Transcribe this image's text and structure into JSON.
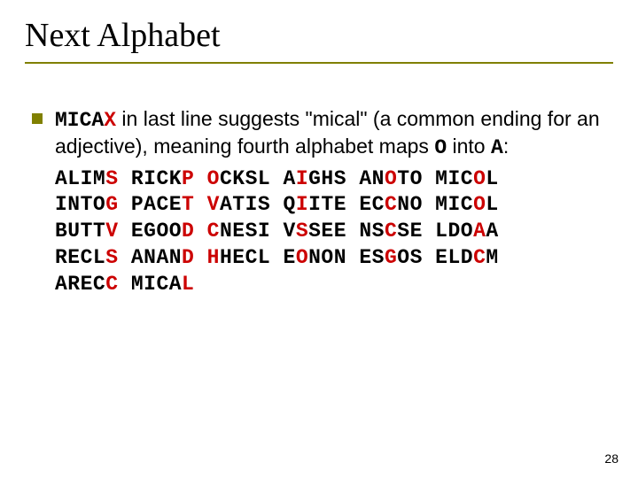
{
  "title": "Next Alphabet",
  "body": {
    "mono1": "MICA",
    "mono1_red": "X",
    "text1": " in last line suggests \"mical\" (a common ending for an adjective), meaning fourth alphabet maps ",
    "mono2": "O",
    "text2": " into ",
    "mono3": "A",
    "text3": ":"
  },
  "cipher": {
    "lines": [
      [
        {
          "t": "ALIM",
          "r": false
        },
        {
          "t": "S",
          "r": true
        },
        {
          "t": " RICK",
          "r": false
        },
        {
          "t": "P",
          "r": true
        },
        {
          "t": " ",
          "r": false
        },
        {
          "t": "O",
          "r": true
        },
        {
          "t": "CKSL A",
          "r": false
        },
        {
          "t": "I",
          "r": true
        },
        {
          "t": "GHS AN",
          "r": false
        },
        {
          "t": "O",
          "r": true
        },
        {
          "t": "TO MIC",
          "r": false
        },
        {
          "t": "O",
          "r": true
        },
        {
          "t": "L",
          "r": false
        }
      ],
      [
        {
          "t": "INTO",
          "r": false
        },
        {
          "t": "G",
          "r": true
        },
        {
          "t": " PACE",
          "r": false
        },
        {
          "t": "T",
          "r": true
        },
        {
          "t": " ",
          "r": false
        },
        {
          "t": "V",
          "r": true
        },
        {
          "t": "ATIS Q",
          "r": false
        },
        {
          "t": "I",
          "r": true
        },
        {
          "t": "ITE EC",
          "r": false
        },
        {
          "t": "C",
          "r": true
        },
        {
          "t": "NO MIC",
          "r": false
        },
        {
          "t": "O",
          "r": true
        },
        {
          "t": "L",
          "r": false
        }
      ],
      [
        {
          "t": "BUTT",
          "r": false
        },
        {
          "t": "V",
          "r": true
        },
        {
          "t": " EGOO",
          "r": false
        },
        {
          "t": "D",
          "r": true
        },
        {
          "t": " ",
          "r": false
        },
        {
          "t": "C",
          "r": true
        },
        {
          "t": "NESI V",
          "r": false
        },
        {
          "t": "S",
          "r": true
        },
        {
          "t": "SEE NS",
          "r": false
        },
        {
          "t": "C",
          "r": true
        },
        {
          "t": "SE LDO",
          "r": false
        },
        {
          "t": "A",
          "r": true
        },
        {
          "t": "A",
          "r": false
        }
      ],
      [
        {
          "t": "RECL",
          "r": false
        },
        {
          "t": "S",
          "r": true
        },
        {
          "t": " ANAN",
          "r": false
        },
        {
          "t": "D",
          "r": true
        },
        {
          "t": " ",
          "r": false
        },
        {
          "t": "H",
          "r": true
        },
        {
          "t": "HECL E",
          "r": false
        },
        {
          "t": "O",
          "r": true
        },
        {
          "t": "NON ES",
          "r": false
        },
        {
          "t": "G",
          "r": true
        },
        {
          "t": "OS ELD",
          "r": false
        },
        {
          "t": "C",
          "r": true
        },
        {
          "t": "M",
          "r": false
        }
      ],
      [
        {
          "t": "AREC",
          "r": false
        },
        {
          "t": "C",
          "r": true
        },
        {
          "t": " MICA",
          "r": false
        },
        {
          "t": "L",
          "r": true
        }
      ]
    ]
  },
  "page_number": "28",
  "colors": {
    "accent": "#808000",
    "red": "#cc0000",
    "text": "#000000",
    "background": "#ffffff"
  }
}
